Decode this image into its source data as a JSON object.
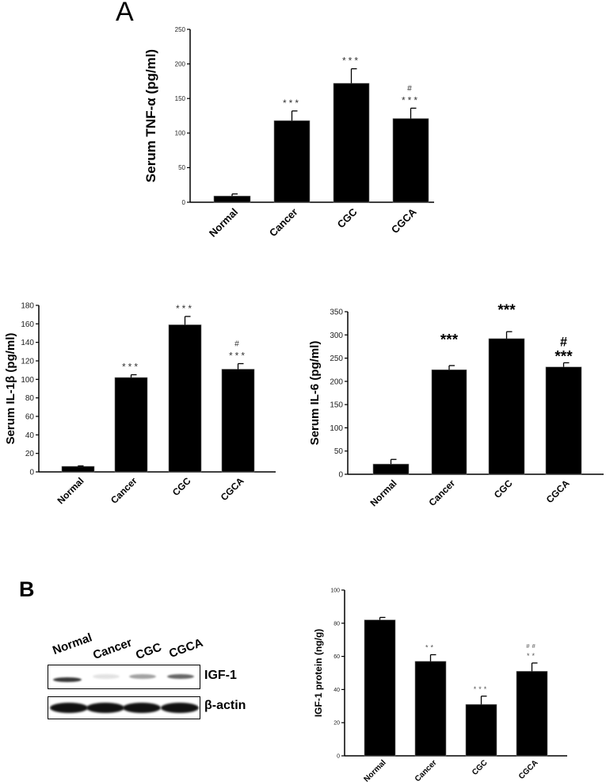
{
  "panel_labels": {
    "a": "A",
    "b": "B"
  },
  "western_blot": {
    "lanes": [
      "Normal",
      "Cancer",
      "CGC",
      "CGCA"
    ],
    "rows": [
      {
        "name": "IGF-1",
        "band_intensity": [
          0.85,
          0.12,
          0.4,
          0.65
        ]
      },
      {
        "name": "β-actin",
        "band_intensity": [
          1,
          1,
          1,
          1
        ]
      }
    ]
  },
  "chart_data": [
    {
      "type": "bar",
      "title": "",
      "xlabel": "",
      "ylabel": "Serum TNF-α (pg/ml)",
      "categories": [
        "Normal",
        "Cancer",
        "CGC",
        "CGCA"
      ],
      "values": [
        9,
        118,
        172,
        121
      ],
      "errors": [
        3,
        14,
        21,
        15
      ],
      "annotations": [
        [],
        [
          "***"
        ],
        [
          "***"
        ],
        [
          "***",
          "#"
        ]
      ],
      "ylim": [
        0,
        250
      ],
      "yticks": [
        0,
        50,
        100,
        150,
        200,
        250
      ],
      "grid": false,
      "bar_color": "#000000"
    },
    {
      "type": "bar",
      "title": "",
      "xlabel": "",
      "ylabel": "Serum IL-1β (pg/ml)",
      "categories": [
        "Normal",
        "Cancer",
        "CGC",
        "CGCA"
      ],
      "values": [
        6,
        102,
        159,
        111
      ],
      "errors": [
        0.5,
        3,
        9,
        6
      ],
      "annotations": [
        [],
        [
          "***"
        ],
        [
          "***"
        ],
        [
          "***",
          "#"
        ]
      ],
      "ylim": [
        0,
        180
      ],
      "yticks": [
        0,
        20,
        40,
        60,
        80,
        100,
        120,
        140,
        160,
        180
      ],
      "grid": false,
      "bar_color": "#000000"
    },
    {
      "type": "bar",
      "title": "",
      "xlabel": "",
      "ylabel": "Serum IL-6 (pg/ml)",
      "categories": [
        "Normal",
        "Cancer",
        "CGC",
        "CGCA"
      ],
      "values": [
        22,
        225,
        292,
        231
      ],
      "errors": [
        10,
        9,
        15,
        9
      ],
      "annotations": [
        [],
        [
          "***"
        ],
        [
          "***"
        ],
        [
          "***",
          "#"
        ]
      ],
      "ylim": [
        0,
        350
      ],
      "yticks": [
        0,
        50,
        100,
        150,
        200,
        250,
        300,
        350
      ],
      "grid": false,
      "bar_color": "#000000"
    },
    {
      "type": "bar",
      "title": "",
      "xlabel": "",
      "ylabel": "IGF-1 protein (ng/g)",
      "categories": [
        "Normal",
        "Cancer",
        "CGC",
        "CGCA"
      ],
      "values": [
        82,
        57,
        31,
        51
      ],
      "errors": [
        1.5,
        4,
        5,
        5
      ],
      "annotations": [
        [],
        [
          "**"
        ],
        [
          "***"
        ],
        [
          "**",
          "##"
        ]
      ],
      "ylim": [
        0,
        100
      ],
      "yticks": [
        0,
        20,
        40,
        60,
        80,
        100
      ],
      "grid": false,
      "bar_color": "#000000"
    }
  ]
}
